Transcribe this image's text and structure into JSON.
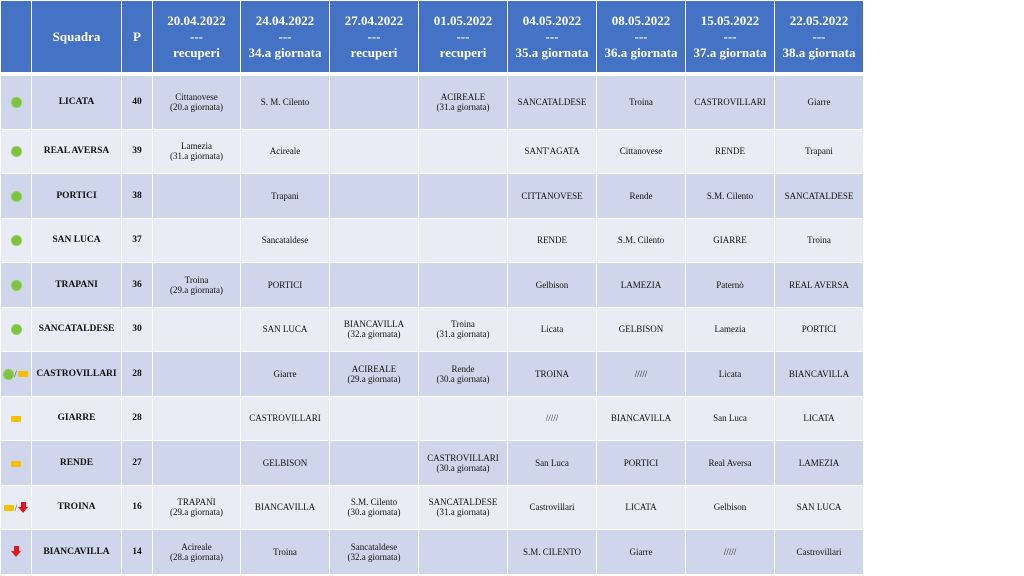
{
  "header": {
    "status": "",
    "team": "Squadra",
    "points": "P",
    "rounds": [
      {
        "date": "20.04.2022",
        "sep": "---",
        "label": "recuperi"
      },
      {
        "date": "24.04.2022",
        "sep": "---",
        "label": "34.a giornata"
      },
      {
        "date": "27.04.2022",
        "sep": "---",
        "label": "recuperi"
      },
      {
        "date": "01.05.2022",
        "sep": "---",
        "label": "recuperi"
      },
      {
        "date": "04.05.2022",
        "sep": "---",
        "label": "35.a giornata"
      },
      {
        "date": "08.05.2022",
        "sep": "---",
        "label": "36.a giornata"
      },
      {
        "date": "15.05.2022",
        "sep": "---",
        "label": "37.a giornata"
      },
      {
        "date": "22.05.2022",
        "sep": "---",
        "label": "38.a giornata"
      }
    ]
  },
  "status_colors": {
    "green": "#7DC242",
    "yellow": "#F5C000",
    "red": "#E8141B"
  },
  "rows": [
    {
      "icons": [
        "green-dot"
      ],
      "team": "LICATA",
      "points": "40",
      "cells": [
        {
          "text": "Cittanovese",
          "note": "(20.a giornata)"
        },
        {
          "text": "S. M. Cilento",
          "note": ""
        },
        {
          "text": "",
          "note": ""
        },
        {
          "text": "ACIREALE",
          "note": "(31.a giornata)"
        },
        {
          "text": "SANCATALDESE",
          "note": ""
        },
        {
          "text": "Troina",
          "note": ""
        },
        {
          "text": "CASTROVILLARI",
          "note": ""
        },
        {
          "text": "Giarre",
          "note": ""
        }
      ]
    },
    {
      "icons": [
        "green-dot"
      ],
      "team": "REAL AVERSA",
      "points": "39",
      "cells": [
        {
          "text": "Lamezia",
          "note": "(31.a giornata)"
        },
        {
          "text": "Acireale",
          "note": ""
        },
        {
          "text": "",
          "note": ""
        },
        {
          "text": "",
          "note": ""
        },
        {
          "text": "SANT'AGATA",
          "note": ""
        },
        {
          "text": "Cittanovese",
          "note": ""
        },
        {
          "text": "RENDE",
          "note": ""
        },
        {
          "text": "Trapani",
          "note": ""
        }
      ]
    },
    {
      "icons": [
        "green-dot"
      ],
      "team": "PORTICI",
      "points": "38",
      "cells": [
        {
          "text": "",
          "note": ""
        },
        {
          "text": "Trapani",
          "note": ""
        },
        {
          "text": "",
          "note": ""
        },
        {
          "text": "",
          "note": ""
        },
        {
          "text": "CITTANOVESE",
          "note": ""
        },
        {
          "text": "Rende",
          "note": ""
        },
        {
          "text": "S.M. Cilento",
          "note": ""
        },
        {
          "text": "SANCATALDESE",
          "note": ""
        }
      ]
    },
    {
      "icons": [
        "green-dot"
      ],
      "team": "SAN LUCA",
      "points": "37",
      "cells": [
        {
          "text": "",
          "note": ""
        },
        {
          "text": "Sancataldese",
          "note": ""
        },
        {
          "text": "",
          "note": ""
        },
        {
          "text": "",
          "note": ""
        },
        {
          "text": "RENDE",
          "note": ""
        },
        {
          "text": "S.M. Cilento",
          "note": ""
        },
        {
          "text": "GIARRE",
          "note": ""
        },
        {
          "text": "Troina",
          "note": ""
        }
      ]
    },
    {
      "icons": [
        "green-dot"
      ],
      "team": "TRAPANI",
      "points": "36",
      "cells": [
        {
          "text": "Troina",
          "note": "(29.a giornata)"
        },
        {
          "text": "PORTICI",
          "note": ""
        },
        {
          "text": "",
          "note": ""
        },
        {
          "text": "",
          "note": ""
        },
        {
          "text": "Gelbison",
          "note": ""
        },
        {
          "text": "LAMEZIA",
          "note": ""
        },
        {
          "text": "Paternò",
          "note": ""
        },
        {
          "text": "REAL AVERSA",
          "note": ""
        }
      ]
    },
    {
      "icons": [
        "green-dot"
      ],
      "team": "SANCATALDESE",
      "points": "30",
      "cells": [
        {
          "text": "",
          "note": ""
        },
        {
          "text": "SAN LUCA",
          "note": ""
        },
        {
          "text": "BIANCAVILLA",
          "note": "(32.a giornata)"
        },
        {
          "text": "Troina",
          "note": "(31.a giornata)"
        },
        {
          "text": "Licata",
          "note": ""
        },
        {
          "text": "GELBISON",
          "note": ""
        },
        {
          "text": "Lamezia",
          "note": ""
        },
        {
          "text": "PORTICI",
          "note": ""
        }
      ]
    },
    {
      "icons": [
        "green-dot",
        "yellow-dash"
      ],
      "team": "CASTROVILLARI",
      "points": "28",
      "cells": [
        {
          "text": "",
          "note": ""
        },
        {
          "text": "Giarre",
          "note": ""
        },
        {
          "text": "ACIREALE",
          "note": "(29.a giornata)"
        },
        {
          "text": "Rende",
          "note": "(30.a giornata)"
        },
        {
          "text": "TROINA",
          "note": ""
        },
        {
          "text": "/////",
          "note": ""
        },
        {
          "text": "Licata",
          "note": ""
        },
        {
          "text": "BIANCAVILLA",
          "note": ""
        }
      ]
    },
    {
      "icons": [
        "yellow-dash"
      ],
      "team": "GIARRE",
      "points": "28",
      "cells": [
        {
          "text": "",
          "note": ""
        },
        {
          "text": "CASTROVILLARI",
          "note": ""
        },
        {
          "text": "",
          "note": ""
        },
        {
          "text": "",
          "note": ""
        },
        {
          "text": "/////",
          "note": ""
        },
        {
          "text": "BIANCAVILLA",
          "note": ""
        },
        {
          "text": "San Luca",
          "note": ""
        },
        {
          "text": "LICATA",
          "note": ""
        }
      ]
    },
    {
      "icons": [
        "yellow-dash"
      ],
      "team": "RENDE",
      "points": "27",
      "cells": [
        {
          "text": "",
          "note": ""
        },
        {
          "text": "GELBISON",
          "note": ""
        },
        {
          "text": "",
          "note": ""
        },
        {
          "text": "CASTROVILLARI",
          "note": "(30.a giornata)"
        },
        {
          "text": "San Luca",
          "note": ""
        },
        {
          "text": "PORTICI",
          "note": ""
        },
        {
          "text": "Real Aversa",
          "note": ""
        },
        {
          "text": "LAMEZIA",
          "note": ""
        }
      ]
    },
    {
      "icons": [
        "yellow-dash",
        "red-arrow-down"
      ],
      "team": "TROINA",
      "points": "16",
      "cells": [
        {
          "text": "TRAPANI",
          "note": "(29.a giornata)"
        },
        {
          "text": "BIANCAVILLA",
          "note": ""
        },
        {
          "text": "S.M. Cilento",
          "note": "(30.a giornata)"
        },
        {
          "text": "SANCATALDESE",
          "note": "(31.a giornata)"
        },
        {
          "text": "Castrovillari",
          "note": ""
        },
        {
          "text": "LICATA",
          "note": ""
        },
        {
          "text": "Gelbison",
          "note": ""
        },
        {
          "text": "SAN LUCA",
          "note": ""
        }
      ]
    },
    {
      "icons": [
        "red-arrow-down"
      ],
      "team": "BIANCAVILLA",
      "points": "14",
      "cells": [
        {
          "text": "Acireale",
          "note": "(28.a giornata)"
        },
        {
          "text": "Troina",
          "note": ""
        },
        {
          "text": "Sancataldese",
          "note": "(32.a giornata)"
        },
        {
          "text": "",
          "note": ""
        },
        {
          "text": "S.M. CILENTO",
          "note": ""
        },
        {
          "text": "Giarre",
          "note": ""
        },
        {
          "text": "/////",
          "note": ""
        },
        {
          "text": "Castrovillari",
          "note": ""
        }
      ]
    }
  ]
}
